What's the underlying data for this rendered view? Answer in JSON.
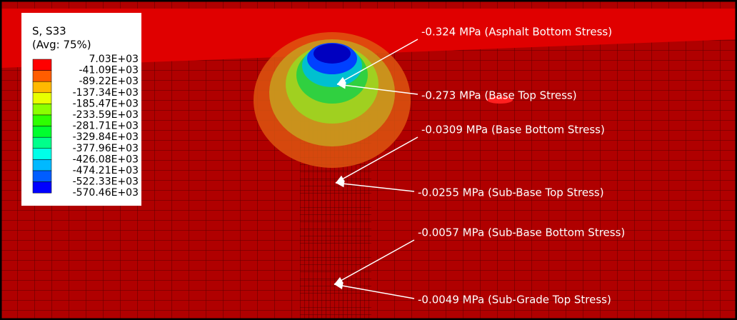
{
  "legend": {
    "title": "S, S33",
    "subtitle": "(Avg: 75%)",
    "labels": [
      "7.03E+03",
      "-41.09E+03",
      "-89.22E+03",
      "-137.34E+03",
      "-185.47E+03",
      "-233.59E+03",
      "-281.71E+03",
      "-329.84E+03",
      "-377.96E+03",
      "-426.08E+03",
      "-474.21E+03",
      "-522.33E+03",
      "-570.46E+03"
    ],
    "colors": [
      "#ff0000",
      "#ff5d00",
      "#ffb900",
      "#e8ff00",
      "#8bff00",
      "#2eff00",
      "#00ff2e",
      "#00ff8b",
      "#00ffe8",
      "#00b9ff",
      "#005dff",
      "#0000ff"
    ]
  },
  "annotations": [
    "-0.324 MPa (Asphalt Bottom Stress)",
    "-0.273 MPa (Base Top Stress)",
    "-0.0309 MPa (Base Bottom Stress)",
    "-0.0255 MPa (Sub-Base Top Stress)",
    "-0.0057 MPa (Sub-Base Bottom Stress)",
    "-0.0049 MPa (Sub-Grade Top Stress)"
  ]
}
